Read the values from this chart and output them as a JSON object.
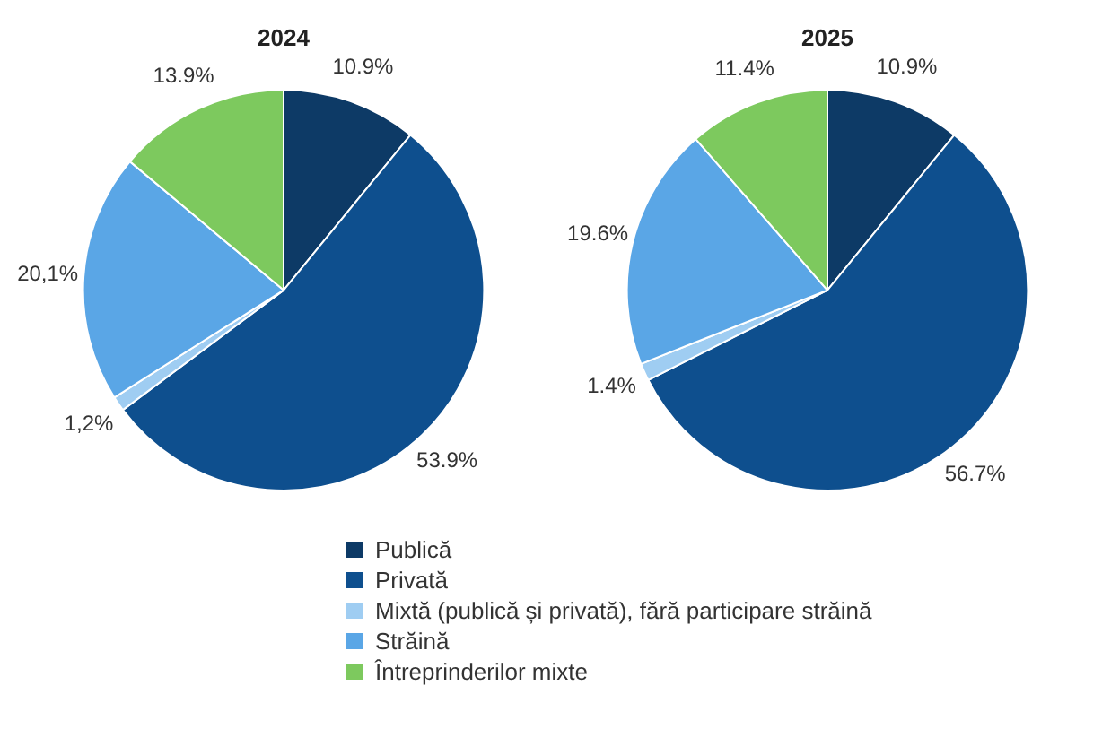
{
  "chart_data": {
    "type": "pie",
    "categories": [
      "Publică",
      "Privată",
      "Mixtă (publică și privată), fără participare străină",
      "Străină",
      "Întreprinderilor mixte"
    ],
    "colors": [
      "#0d3a66",
      "#0e4f8e",
      "#9fcdf2",
      "#5aa6e6",
      "#7dc95e"
    ],
    "legend": "bottom",
    "series": [
      {
        "name": "2024",
        "values": [
          10.9,
          53.9,
          1.2,
          20.1,
          13.9
        ],
        "value_labels": [
          "10.9%",
          "53.9%",
          "1,2%",
          "20,1%",
          "13.9%"
        ]
      },
      {
        "name": "2025",
        "values": [
          10.9,
          56.7,
          1.4,
          19.6,
          11.4
        ],
        "value_labels": [
          "10.9%",
          "56.7%",
          "1.4%",
          "19.6%",
          "11.4%"
        ]
      }
    ]
  }
}
